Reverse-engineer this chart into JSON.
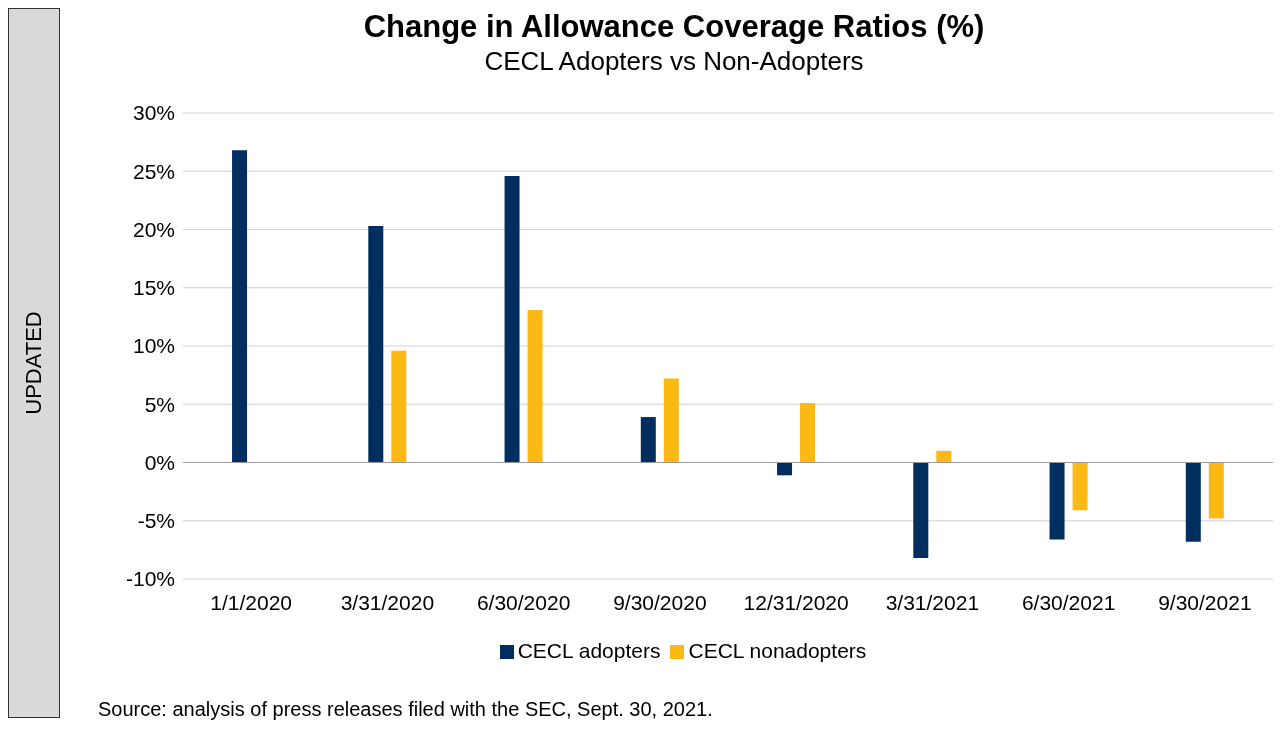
{
  "chart_data": {
    "type": "bar",
    "title": "Change in Allowance Coverage Ratios (%)",
    "subtitle": "CECL Adopters vs Non-Adopters",
    "categories": [
      "1/1/2020",
      "3/31/2020",
      "6/30/2020",
      "9/30/2020",
      "12/31/2020",
      "3/31/2021",
      "6/30/2021",
      "9/30/2021"
    ],
    "series": [
      {
        "name": "CECL adopters",
        "color": "#002f5f",
        "values": [
          26.8,
          20.3,
          24.6,
          3.9,
          -1.1,
          -8.2,
          -6.6,
          -6.8
        ]
      },
      {
        "name": "CECL nonadopters",
        "color": "#fdb913",
        "values": [
          null,
          9.6,
          13.1,
          7.2,
          5.1,
          1.0,
          -4.1,
          -4.8
        ]
      }
    ],
    "ylim": [
      -10,
      30
    ],
    "yticks": [
      {
        "value": -10,
        "label": "-10%"
      },
      {
        "value": -5,
        "label": "-5%"
      },
      {
        "value": 0,
        "label": "0%"
      },
      {
        "value": 5,
        "label": "5%"
      },
      {
        "value": 10,
        "label": "10%"
      },
      {
        "value": 15,
        "label": "15%"
      },
      {
        "value": 20,
        "label": "20%"
      },
      {
        "value": 25,
        "label": "25%"
      },
      {
        "value": 30,
        "label": "30%"
      }
    ],
    "grid": "y",
    "legend": "bottom",
    "annotations": [
      "UPDATED",
      "Source: analysis of press releases filed with the SEC, Sept. 30, 2021."
    ]
  }
}
